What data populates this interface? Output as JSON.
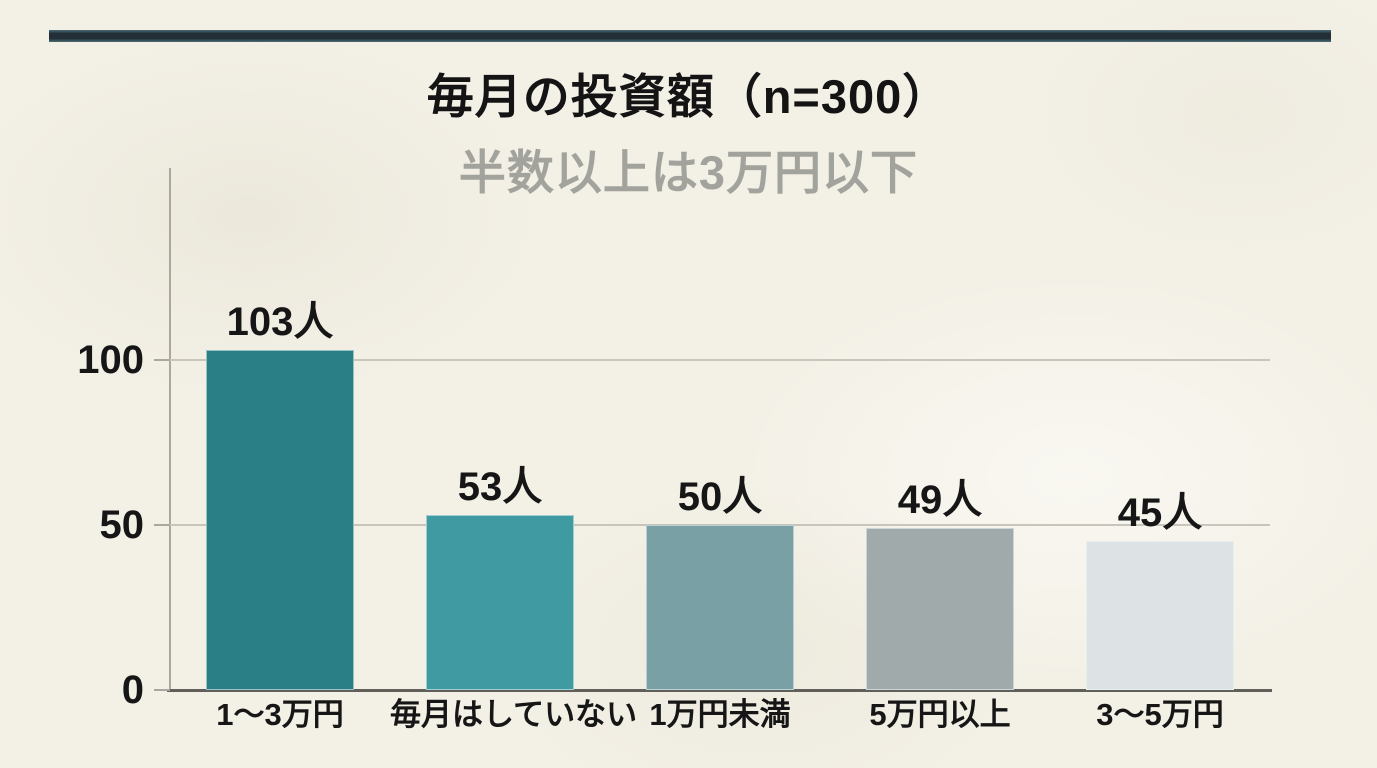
{
  "header": {
    "title": "毎月の投資額（n=300）",
    "subtitle": "半数以上は3万円以下"
  },
  "chart_data": {
    "type": "bar",
    "title": "毎月の投資額（n=300）",
    "subtitle": "半数以上は3万円以下",
    "sample_size_note": "n=300",
    "categories": [
      "1〜3万円",
      "毎月はしていない",
      "1万円未満",
      "5万円以上",
      "3〜5万円"
    ],
    "values": [
      103,
      53,
      50,
      49,
      45
    ],
    "value_labels": [
      "103人",
      "53人",
      "50人",
      "49人",
      "45人"
    ],
    "unit": "人",
    "yticks": [
      0,
      50,
      100
    ],
    "ylim": [
      0,
      158
    ],
    "grid": true,
    "legend": false,
    "bar_colors": [
      "#2a7e86",
      "#3f9aa1",
      "#78a0a5",
      "#a0aaab",
      "#dde2e5"
    ],
    "colors": {
      "background": "#f3f0e6",
      "top_rule": "#222f37",
      "title_text": "#141414",
      "subtitle_text": "#a3a39d",
      "gridline": "#c9c5ba",
      "axis_line": "#605f5a"
    }
  }
}
